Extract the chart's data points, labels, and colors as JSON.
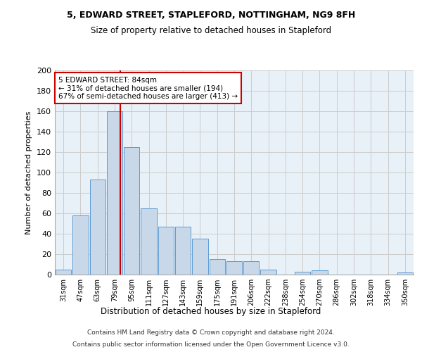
{
  "title1": "5, EDWARD STREET, STAPLEFORD, NOTTINGHAM, NG9 8FH",
  "title2": "Size of property relative to detached houses in Stapleford",
  "xlabel": "Distribution of detached houses by size in Stapleford",
  "ylabel": "Number of detached properties",
  "bar_color": "#c8d8e8",
  "bar_edge_color": "#5b9bd5",
  "bin_labels": [
    "31sqm",
    "47sqm",
    "63sqm",
    "79sqm",
    "95sqm",
    "111sqm",
    "127sqm",
    "143sqm",
    "159sqm",
    "175sqm",
    "191sqm",
    "206sqm",
    "222sqm",
    "238sqm",
    "254sqm",
    "270sqm",
    "286sqm",
    "302sqm",
    "318sqm",
    "334sqm",
    "350sqm"
  ],
  "bar_heights": [
    5,
    58,
    93,
    160,
    125,
    65,
    47,
    47,
    35,
    15,
    13,
    13,
    5,
    0,
    3,
    4,
    0,
    0,
    0,
    0,
    2
  ],
  "vline_color": "#cc0000",
  "annotation_text": "5 EDWARD STREET: 84sqm\n← 31% of detached houses are smaller (194)\n67% of semi-detached houses are larger (413) →",
  "annotation_box_color": "#ffffff",
  "annotation_box_edge": "#cc0000",
  "ylim": [
    0,
    200
  ],
  "yticks": [
    0,
    20,
    40,
    60,
    80,
    100,
    120,
    140,
    160,
    180,
    200
  ],
  "grid_color": "#cccccc",
  "bg_color": "#e8f0f8",
  "footer_line1": "Contains HM Land Registry data © Crown copyright and database right 2024.",
  "footer_line2": "Contains public sector information licensed under the Open Government Licence v3.0."
}
